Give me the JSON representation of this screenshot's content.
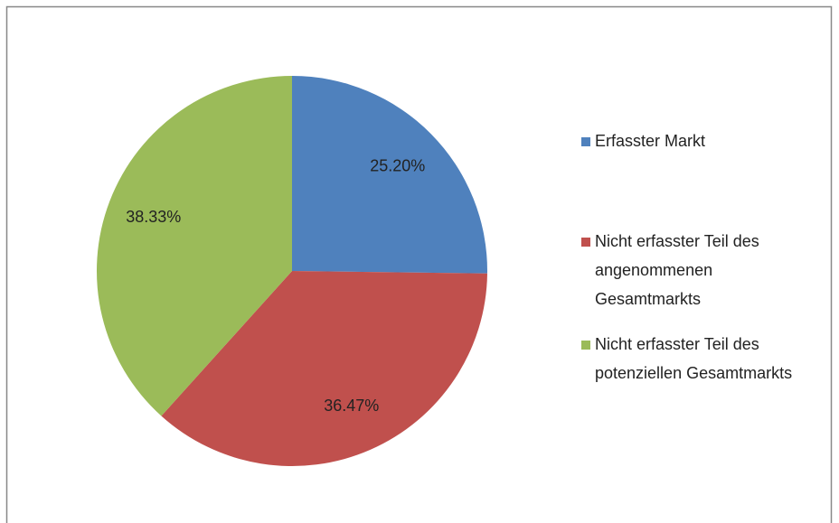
{
  "chart_data": {
    "type": "pie",
    "categories": [
      "Erfasster Markt",
      "Nicht erfasster Teil des angenommenen Gesamtmarkts",
      "Nicht erfasster Teil des potenziellen Gesamtmarkts"
    ],
    "values": [
      25.2,
      36.47,
      38.33
    ],
    "value_labels": [
      "25.20%",
      "36.47%",
      "38.33%"
    ],
    "colors": [
      "#4f81bd",
      "#c0504d",
      "#9bbb59"
    ],
    "legend": "right"
  }
}
